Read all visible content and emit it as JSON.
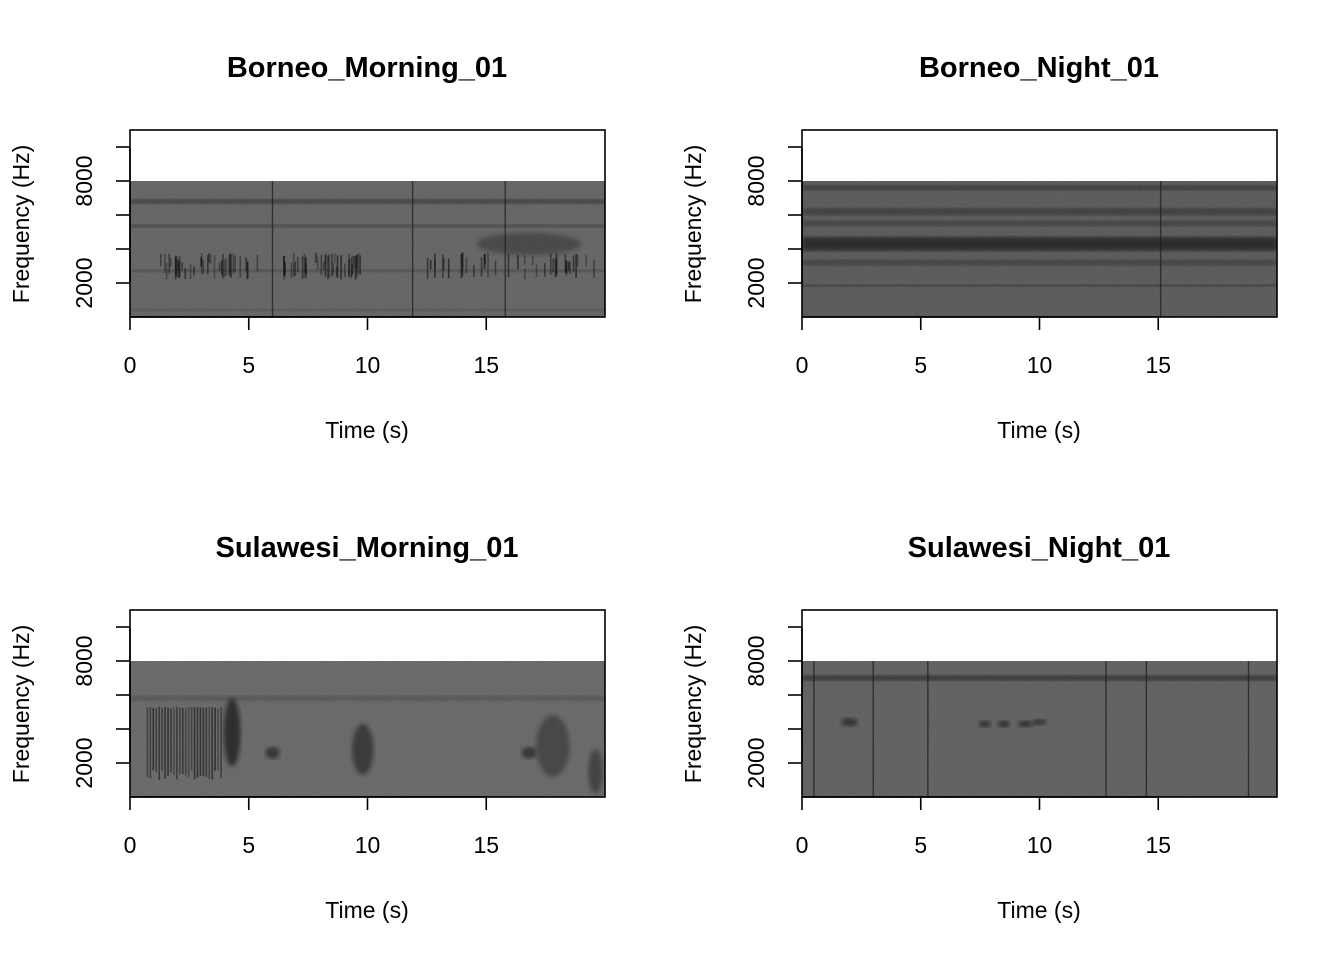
{
  "chart_data": [
    {
      "type": "heatmap",
      "title": "Borneo_Morning_01",
      "xlabel": "Time (s)",
      "ylabel": "Frequency (Hz)",
      "xlim": [
        0,
        20
      ],
      "ylim": [
        0,
        11000
      ],
      "data_range_y": [
        0,
        8000
      ],
      "x_ticks": [
        0,
        5,
        10,
        15
      ],
      "y_ticks": [
        2000,
        4000,
        6000,
        8000,
        10000
      ],
      "y_tick_labels": [
        "2000",
        "",
        "",
        "8000",
        ""
      ],
      "base_gray": "#5e5e5e",
      "bands": [
        {
          "y": 6800,
          "width": 260,
          "opacity": 0.55
        },
        {
          "y": 5350,
          "width": 160,
          "opacity": 0.5
        },
        {
          "y": 2720,
          "width": 140,
          "opacity": 0.45
        },
        {
          "y": 420,
          "width": 120,
          "opacity": 0.35
        }
      ],
      "vlines": [
        6.0,
        11.9,
        15.8
      ],
      "blobs": [
        {
          "x": 16.8,
          "y": 4300,
          "rx": 2.2,
          "ry": 650,
          "opacity": 0.35
        }
      ],
      "bursts": [
        {
          "x0": 1.2,
          "x1": 5.5,
          "y0": 2200,
          "y1": 3800
        },
        {
          "x0": 6.4,
          "x1": 9.8,
          "y0": 2200,
          "y1": 3800
        },
        {
          "x0": 12.3,
          "x1": 19.8,
          "y0": 2200,
          "y1": 3800
        }
      ]
    },
    {
      "type": "heatmap",
      "title": "Borneo_Night_01",
      "xlabel": "Time (s)",
      "ylabel": "Frequency (Hz)",
      "xlim": [
        0,
        20
      ],
      "ylim": [
        0,
        11000
      ],
      "data_range_y": [
        0,
        8000
      ],
      "x_ticks": [
        0,
        5,
        10,
        15
      ],
      "y_ticks": [
        2000,
        4000,
        6000,
        8000,
        10000
      ],
      "y_tick_labels": [
        "2000",
        "",
        "",
        "8000",
        ""
      ],
      "base_gray": "#535353",
      "bands": [
        {
          "y": 7600,
          "width": 280,
          "opacity": 0.5
        },
        {
          "y": 6200,
          "width": 400,
          "opacity": 0.45
        },
        {
          "y": 5500,
          "width": 300,
          "opacity": 0.4
        },
        {
          "y": 4300,
          "width": 800,
          "opacity": 0.75
        },
        {
          "y": 3200,
          "width": 350,
          "opacity": 0.35
        },
        {
          "y": 1850,
          "width": 140,
          "opacity": 0.6
        }
      ],
      "vlines": [
        15.1
      ],
      "blobs": [],
      "bursts": []
    },
    {
      "type": "heatmap",
      "title": "Sulawesi_Morning_01",
      "xlabel": "Time (s)",
      "ylabel": "Frequency (Hz)",
      "xlim": [
        0,
        20
      ],
      "ylim": [
        0,
        11000
      ],
      "data_range_y": [
        0,
        8000
      ],
      "x_ticks": [
        0,
        5,
        10,
        15
      ],
      "y_ticks": [
        2000,
        4000,
        6000,
        8000,
        10000
      ],
      "y_tick_labels": [
        "2000",
        "",
        "",
        "8000",
        ""
      ],
      "base_gray": "#626262",
      "bands": [
        {
          "y": 5800,
          "width": 300,
          "opacity": 0.25
        }
      ],
      "vlines": [],
      "blobs": [
        {
          "x": 4.3,
          "y": 3800,
          "rx": 0.35,
          "ry": 2000,
          "opacity": 0.7
        },
        {
          "x": 9.8,
          "y": 2800,
          "rx": 0.45,
          "ry": 1500,
          "opacity": 0.55
        },
        {
          "x": 6.0,
          "y": 2600,
          "rx": 0.3,
          "ry": 350,
          "opacity": 0.6
        },
        {
          "x": 16.8,
          "y": 2600,
          "rx": 0.3,
          "ry": 350,
          "opacity": 0.6
        },
        {
          "x": 17.8,
          "y": 3000,
          "rx": 0.7,
          "ry": 1800,
          "opacity": 0.4
        },
        {
          "x": 19.6,
          "y": 1500,
          "rx": 0.3,
          "ry": 1300,
          "opacity": 0.45
        }
      ],
      "bursts": [
        {
          "x0": 0.7,
          "x1": 3.8,
          "y0": 1000,
          "y1": 5300,
          "stripes": true
        }
      ]
    },
    {
      "type": "heatmap",
      "title": "Sulawesi_Night_01",
      "xlabel": "Time (s)",
      "ylabel": "Frequency (Hz)",
      "xlim": [
        0,
        20
      ],
      "ylim": [
        0,
        11000
      ],
      "data_range_y": [
        0,
        8000
      ],
      "x_ticks": [
        0,
        5,
        10,
        15
      ],
      "y_ticks": [
        2000,
        4000,
        6000,
        8000,
        10000
      ],
      "y_tick_labels": [
        "2000",
        "",
        "",
        "8000",
        ""
      ],
      "base_gray": "#5a5a5a",
      "bands": [
        {
          "y": 7000,
          "width": 320,
          "opacity": 0.6
        }
      ],
      "vlines": [
        0.5,
        3.0,
        5.3,
        12.8,
        14.5,
        18.8
      ],
      "blobs": [
        {
          "x": 2.0,
          "y": 4400,
          "rx": 0.35,
          "ry": 250,
          "opacity": 0.6
        },
        {
          "x": 7.7,
          "y": 4300,
          "rx": 0.25,
          "ry": 180,
          "opacity": 0.7
        },
        {
          "x": 8.5,
          "y": 4300,
          "rx": 0.25,
          "ry": 180,
          "opacity": 0.7
        },
        {
          "x": 9.4,
          "y": 4300,
          "rx": 0.3,
          "ry": 180,
          "opacity": 0.7
        },
        {
          "x": 10.0,
          "y": 4400,
          "rx": 0.3,
          "ry": 180,
          "opacity": 0.6
        }
      ],
      "bursts": []
    }
  ]
}
